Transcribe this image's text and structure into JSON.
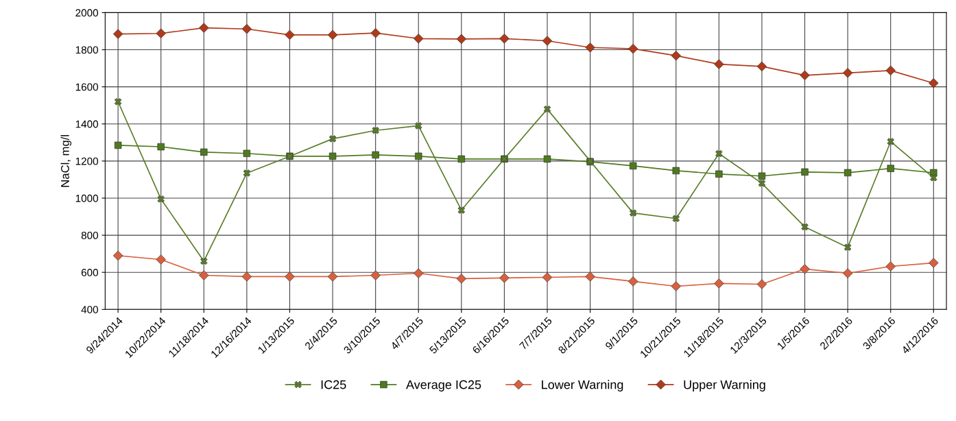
{
  "chart_data": {
    "type": "line",
    "ylabel": "NaCl, mg/l",
    "categories": [
      "9/24/2014",
      "10/22/2014",
      "11/18/2014",
      "12/16/2014",
      "1/13/2015",
      "2/4/2015",
      "3/10/2015",
      "4/7/2015",
      "5/13/2015",
      "6/16/2015",
      "7/7/2015",
      "8/21/2015",
      "9/1/2015",
      "10/21/2015",
      "11/18/2015",
      "12/3/2015",
      "1/5/2016",
      "2/2/2016",
      "3/8/2016",
      "4/12/2016"
    ],
    "series": [
      {
        "name": "IC25",
        "color": "#5a7d2a",
        "marker": "cross",
        "values": [
          1520,
          995,
          660,
          1135,
          1225,
          1320,
          1365,
          1390,
          935,
          1212,
          1480,
          1200,
          920,
          890,
          1240,
          1080,
          845,
          735,
          1305,
          1110
        ]
      },
      {
        "name": "Average IC25",
        "color": "#4f7a1e",
        "marker": "square",
        "values": [
          1285,
          1277,
          1248,
          1241,
          1226,
          1226,
          1233,
          1226,
          1211,
          1211,
          1211,
          1196,
          1174,
          1148,
          1130,
          1119,
          1141,
          1137,
          1160,
          1137
        ]
      },
      {
        "name": "Lower Warning",
        "color": "#d9603e",
        "marker": "diamond",
        "values": [
          690,
          669,
          584,
          577,
          577,
          577,
          584,
          595,
          566,
          570,
          573,
          577,
          551,
          525,
          540,
          536,
          618,
          595,
          632,
          651
        ]
      },
      {
        "name": "Upper Warning",
        "color": "#b03a1a",
        "marker": "diamond",
        "values": [
          1885,
          1888,
          1918,
          1912,
          1880,
          1880,
          1890,
          1860,
          1858,
          1860,
          1848,
          1812,
          1805,
          1768,
          1722,
          1710,
          1662,
          1675,
          1688,
          1620
        ]
      }
    ],
    "ylim": [
      400,
      2000
    ],
    "yticks": [
      400,
      600,
      800,
      1000,
      1200,
      1400,
      1600,
      1800,
      2000
    ],
    "grid": true,
    "legend": "bottom",
    "line_style": "solid"
  }
}
